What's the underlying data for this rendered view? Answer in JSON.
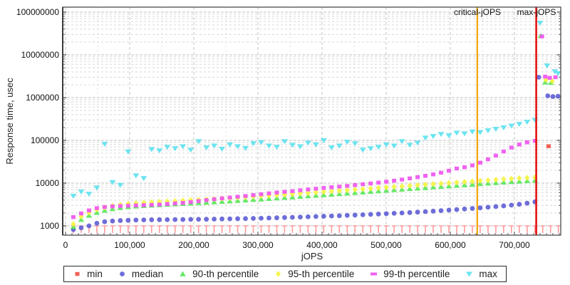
{
  "axes": {
    "y": {
      "title": "Response time, usec",
      "scale": "log",
      "ticks": [
        {
          "label": "1000",
          "value": 1000
        },
        {
          "label": "10000",
          "value": 10000
        },
        {
          "label": "100000",
          "value": 100000
        },
        {
          "label": "1000000",
          "value": 1000000
        },
        {
          "label": "10000000",
          "value": 10000000
        },
        {
          "label": "100000000",
          "value": 100000000
        }
      ]
    },
    "x": {
      "title": "jOPS",
      "ticks": [
        {
          "label": "0",
          "value": 0
        },
        {
          "label": "100,000",
          "value": 100000
        },
        {
          "label": "200,000",
          "value": 200000
        },
        {
          "label": "300,000",
          "value": 300000
        },
        {
          "label": "400,000",
          "value": 400000
        },
        {
          "label": "500,000",
          "value": 500000
        },
        {
          "label": "600,000",
          "value": 600000
        },
        {
          "label": "700,000",
          "value": 700000
        }
      ],
      "minor_step": 10000,
      "max_visible": 772000
    }
  },
  "annotations": {
    "critical_label": "critical-jOPS",
    "critical_x": 642000,
    "critical_color": "#f0a500",
    "max_label": "max-jOPS",
    "max_x": 734000,
    "max_color": "#e41414"
  },
  "legend": [
    {
      "label": "min",
      "color": "#f25247",
      "marker": "square"
    },
    {
      "label": "median",
      "color": "#6161d6",
      "marker": "circle"
    },
    {
      "label": "90-th percentile",
      "color": "#58e658",
      "marker": "triangle-up"
    },
    {
      "label": "95-th percentile",
      "color": "#f4f440",
      "marker": "diamond"
    },
    {
      "label": "99-th percentile",
      "color": "#f055f0",
      "marker": "hbar"
    },
    {
      "label": "max",
      "color": "#5fe2ef",
      "marker": "triangle-down"
    }
  ],
  "chart_data": {
    "type": "scatter",
    "title": "",
    "xlabel": "jOPS",
    "ylabel": "Response time, usec",
    "x_range": [
      0,
      772000
    ],
    "y_range": [
      1000,
      100000000
    ],
    "y_scale": "log",
    "grid": true,
    "legend_position": "bottom",
    "x": [
      12200,
      24400,
      36600,
      48800,
      61000,
      73200,
      85400,
      97600,
      109800,
      122000,
      134200,
      146400,
      158600,
      170800,
      183000,
      195200,
      207400,
      219600,
      231800,
      244000,
      256200,
      268400,
      280600,
      292800,
      305000,
      317200,
      329400,
      341600,
      353800,
      366000,
      378200,
      390400,
      402600,
      414800,
      427000,
      439200,
      451400,
      463600,
      475800,
      488000,
      500200,
      512400,
      524600,
      536800,
      549000,
      561200,
      573400,
      585600,
      597800,
      610000,
      622200,
      634400,
      646600,
      658800,
      671000,
      683200,
      695400,
      707600,
      719800,
      732000
    ],
    "series": [
      {
        "name": "min",
        "color": "#f25247",
        "tee_color": "#ff9a9a",
        "marker": "tee",
        "values": [
          1000,
          1000,
          1000,
          1000,
          1000,
          1000,
          1000,
          1000,
          1000,
          1000,
          1000,
          1000,
          1000,
          1000,
          1000,
          1000,
          1000,
          1000,
          1000,
          1000,
          1000,
          1000,
          1000,
          1000,
          1000,
          1000,
          1000,
          1000,
          1000,
          1000,
          1000,
          1000,
          1000,
          1000,
          1000,
          1000,
          1000,
          1000,
          1000,
          1000,
          1000,
          1000,
          1000,
          1000,
          1000,
          1000,
          1000,
          1000,
          1000,
          1000,
          1000,
          1000,
          1000,
          1000,
          1000,
          1000,
          1000,
          1000,
          1000,
          1000
        ],
        "extra_tees": [
          744200,
          756400,
          768600
        ],
        "extra_points": [
          [
            753300,
            73000
          ]
        ]
      },
      {
        "name": "median",
        "color": "#6161d6",
        "marker": "circle",
        "values": [
          820,
          900,
          1000,
          1150,
          1250,
          1300,
          1330,
          1350,
          1370,
          1380,
          1390,
          1395,
          1400,
          1405,
          1410,
          1420,
          1425,
          1430,
          1440,
          1450,
          1460,
          1470,
          1480,
          1495,
          1510,
          1525,
          1545,
          1565,
          1585,
          1610,
          1630,
          1655,
          1680,
          1705,
          1730,
          1760,
          1790,
          1820,
          1855,
          1890,
          1925,
          1965,
          2005,
          2050,
          2100,
          2155,
          2210,
          2270,
          2335,
          2405,
          2480,
          2555,
          2640,
          2730,
          2825,
          2935,
          3060,
          3200,
          3390,
          3640
        ],
        "extra_points": [
          [
            738000,
            3000000
          ],
          [
            752000,
            1100000
          ],
          [
            760000,
            1060000
          ],
          [
            768000,
            1080000
          ]
        ]
      },
      {
        "name": "p90",
        "color": "#58e658",
        "marker": "triangle-up",
        "values": [
          950,
          1400,
          1750,
          2050,
          2300,
          2500,
          2650,
          2780,
          2880,
          2960,
          3030,
          3100,
          3170,
          3240,
          3310,
          3380,
          3450,
          3530,
          3610,
          3700,
          3790,
          3890,
          3990,
          4100,
          4210,
          4330,
          4450,
          4580,
          4710,
          4850,
          5000,
          5150,
          5300,
          5460,
          5630,
          5800,
          5980,
          6160,
          6350,
          6540,
          6740,
          6950,
          7160,
          7380,
          7600,
          7830,
          8070,
          8310,
          8560,
          8820,
          9080,
          9350,
          9630,
          9920,
          10200,
          10500,
          10800,
          11000,
          11300,
          11600
        ],
        "extra_points": [
          [
            741000,
            28000000
          ],
          [
            748000,
            2300000
          ],
          [
            757000,
            2250000
          ]
        ]
      },
      {
        "name": "p95",
        "color": "#f4f440",
        "marker": "diamond",
        "values": [
          1100,
          1650,
          2050,
          2400,
          2700,
          2950,
          3130,
          3280,
          3400,
          3490,
          3580,
          3660,
          3740,
          3820,
          3910,
          3990,
          4070,
          4170,
          4260,
          4370,
          4470,
          4590,
          4710,
          4840,
          4970,
          5110,
          5250,
          5400,
          5560,
          5720,
          5900,
          6080,
          6250,
          6440,
          6640,
          6840,
          7060,
          7270,
          7490,
          7720,
          7950,
          8200,
          8450,
          8710,
          8970,
          9240,
          9520,
          9810,
          10100,
          10400,
          10700,
          11000,
          11400,
          11700,
          12000,
          12400,
          12700,
          13000,
          13300,
          13700
        ],
        "extra_points": [
          [
            749000,
            2600000
          ],
          [
            759000,
            2400000
          ]
        ]
      },
      {
        "name": "p99",
        "color": "#f055f0",
        "marker": "square",
        "values": [
          1600,
          1950,
          2300,
          2600,
          2750,
          2850,
          2900,
          2950,
          3000,
          3050,
          3100,
          3150,
          3250,
          3350,
          3450,
          3600,
          3800,
          4000,
          4200,
          4400,
          4600,
          4800,
          5000,
          5250,
          5500,
          5750,
          6000,
          6250,
          6500,
          6800,
          7100,
          7400,
          7700,
          8000,
          8300,
          8600,
          9000,
          9400,
          9800,
          10300,
          10800,
          11400,
          12100,
          12900,
          13800,
          14800,
          16000,
          17500,
          19500,
          22000,
          23500,
          26000,
          30000,
          36000,
          44000,
          55000,
          68000,
          80000,
          90000,
          97000
        ],
        "extra_points": [
          [
            743000,
            27000000
          ],
          [
            748000,
            3100000
          ],
          [
            755000,
            2900000
          ],
          [
            764000,
            3000000
          ]
        ]
      },
      {
        "name": "max",
        "color": "#5fe2ef",
        "marker": "triangle-down",
        "values": [
          5000,
          6300,
          5600,
          7800,
          82000,
          10500,
          9000,
          55000,
          15000,
          13000,
          62000,
          58000,
          70000,
          65000,
          72000,
          60000,
          95000,
          68000,
          75000,
          63000,
          80000,
          72000,
          66000,
          85000,
          90000,
          75000,
          70000,
          95000,
          78000,
          72000,
          88000,
          80000,
          100000,
          68000,
          75000,
          92000,
          85000,
          60000,
          65000,
          70000,
          80000,
          75000,
          95000,
          78000,
          88000,
          115000,
          125000,
          140000,
          130000,
          150000,
          145000,
          160000,
          155000,
          170000,
          185000,
          200000,
          220000,
          240000,
          270000,
          300000
        ],
        "extra_points": [
          [
            740000,
            56000000
          ],
          [
            751000,
            5600000
          ],
          [
            763000,
            4100000
          ],
          [
            768000,
            3700000
          ]
        ]
      }
    ]
  }
}
